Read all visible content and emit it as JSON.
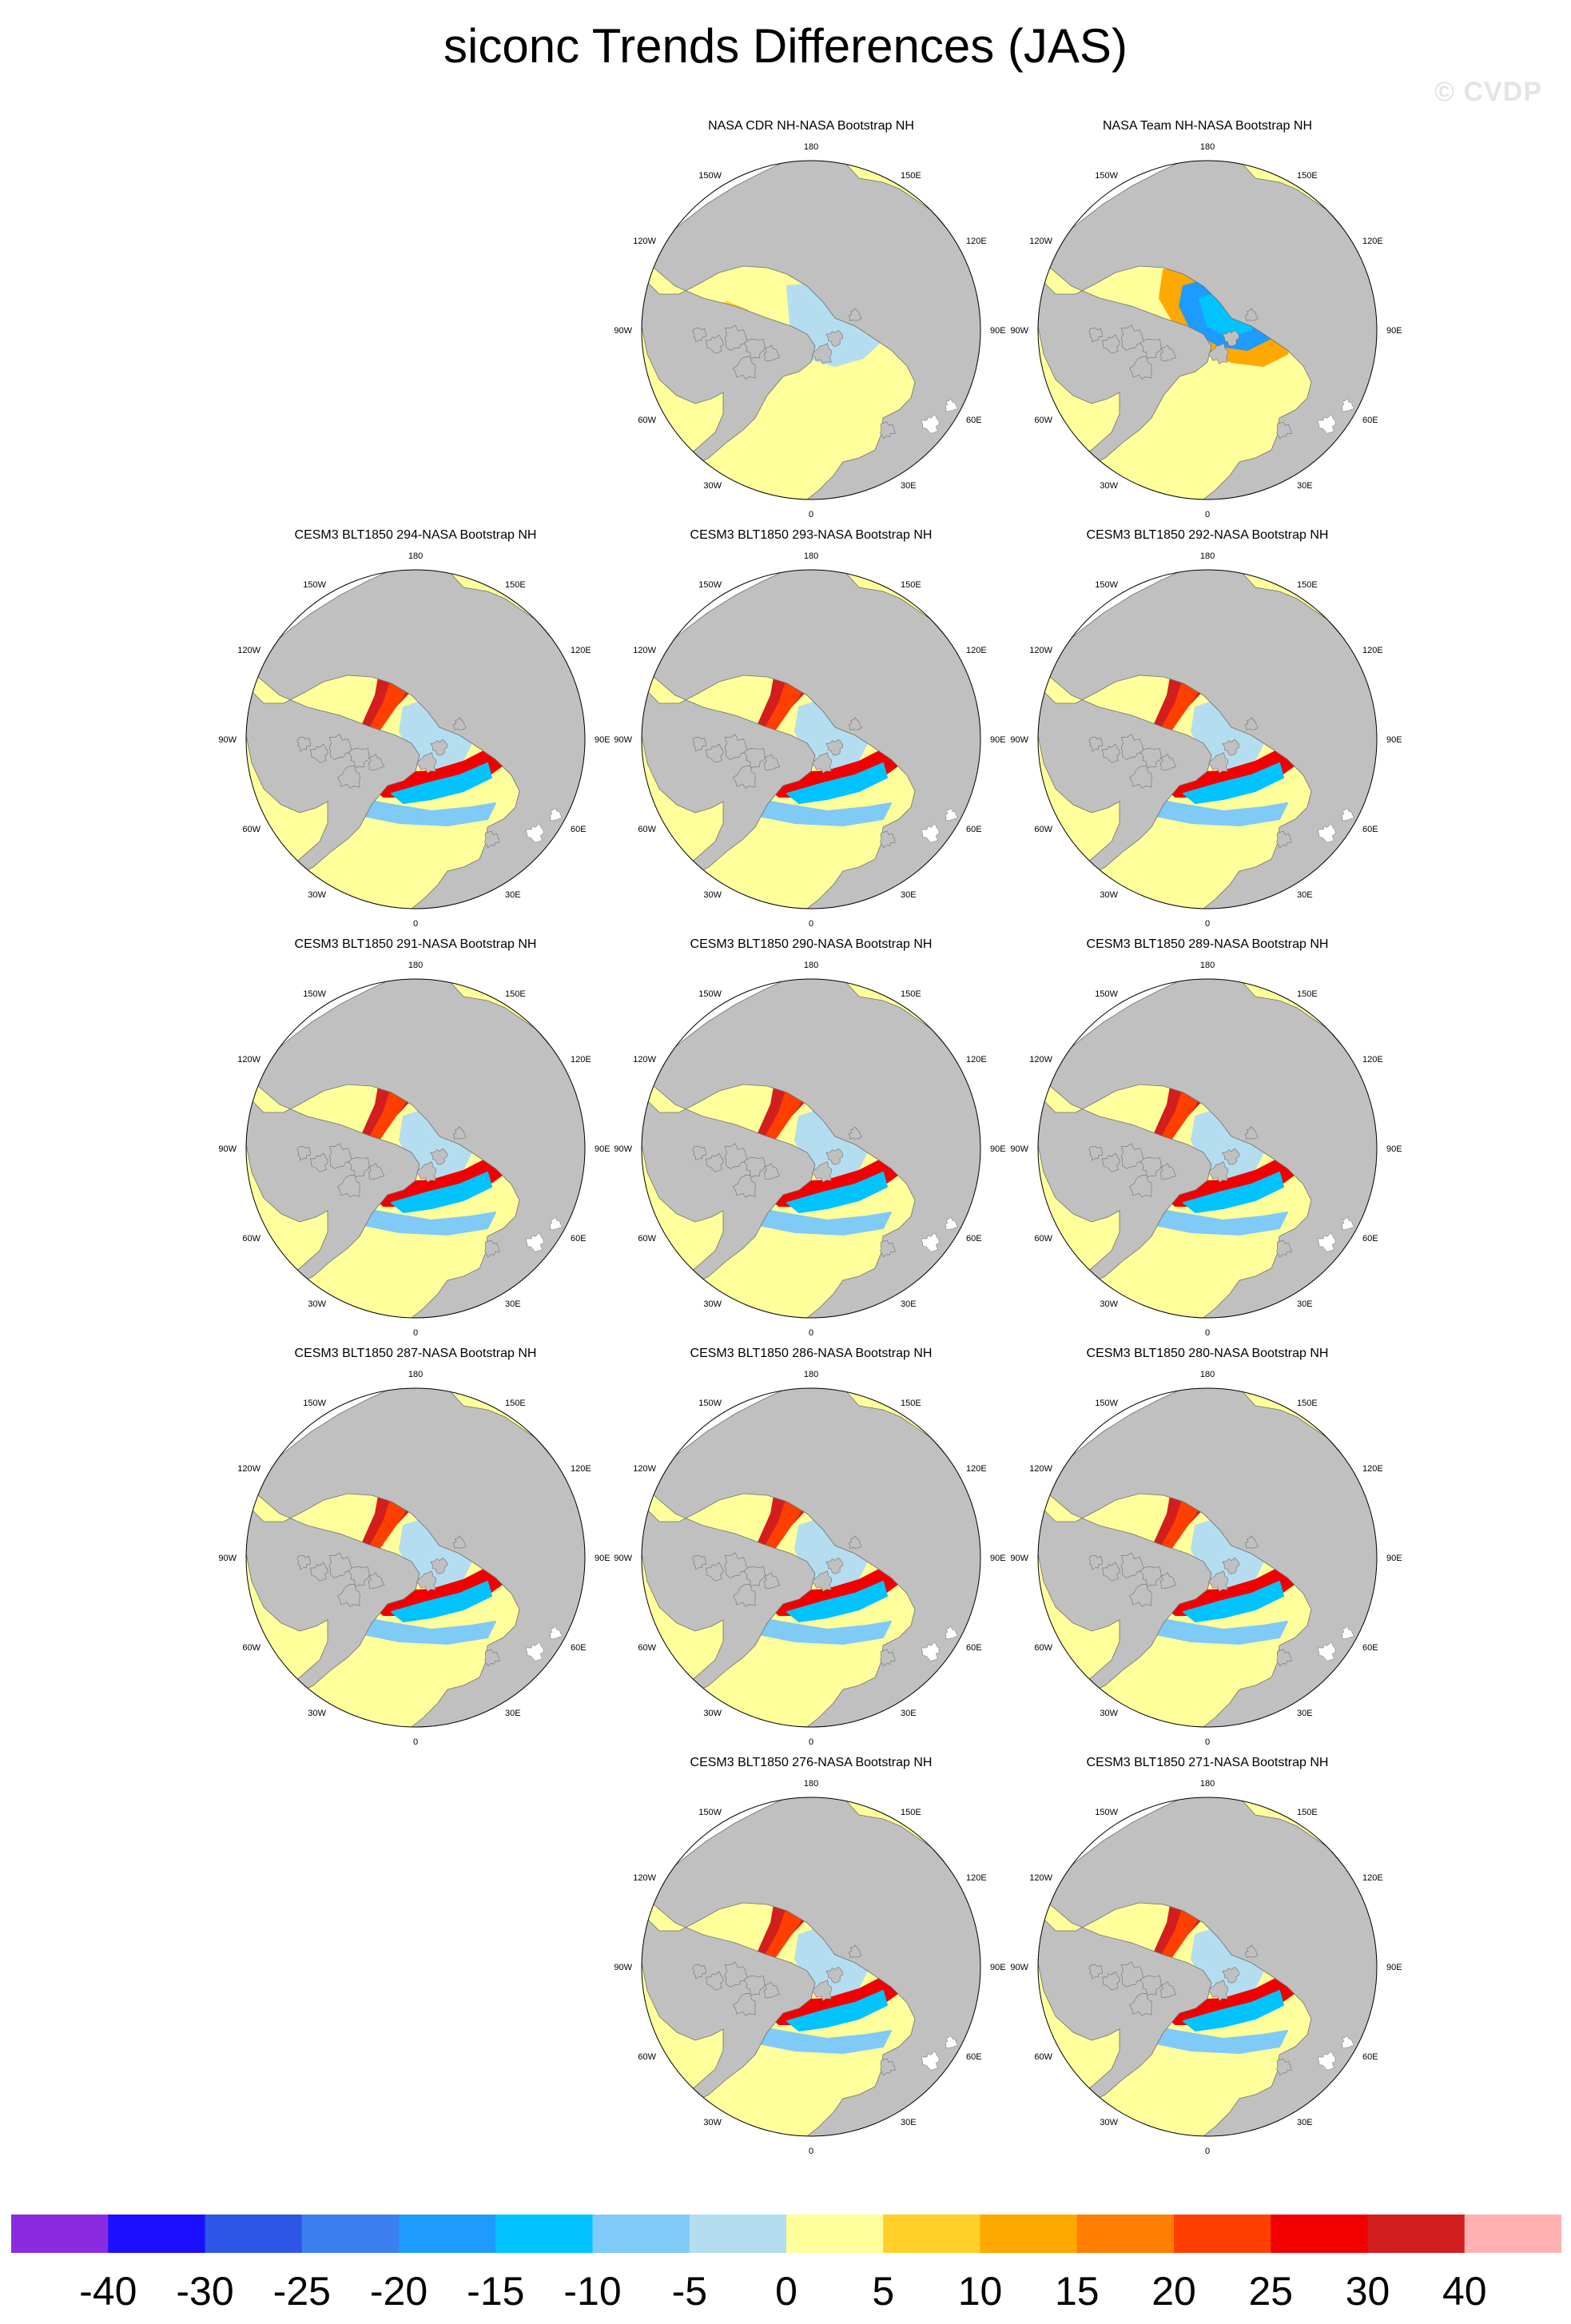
{
  "figure": {
    "title": "siconc Trends Differences (JAS)",
    "watermark": "© CVDP"
  },
  "lon_labels": [
    "180",
    "150E",
    "120E",
    "90E",
    "60E",
    "30E",
    "0",
    "30W",
    "60W",
    "90W",
    "120W",
    "150W"
  ],
  "panels": [
    {
      "row": 0,
      "col": 1,
      "title": "NASA CDR NH-NASA Bootstrap NH",
      "pattern": "cdr"
    },
    {
      "row": 0,
      "col": 2,
      "title": "NASA Team NH-NASA Bootstrap NH",
      "pattern": "team"
    },
    {
      "row": 1,
      "col": 0,
      "title": "CESM3 BLT1850 294-NASA Bootstrap NH",
      "pattern": "model"
    },
    {
      "row": 1,
      "col": 1,
      "title": "CESM3 BLT1850 293-NASA Bootstrap NH",
      "pattern": "model"
    },
    {
      "row": 1,
      "col": 2,
      "title": "CESM3 BLT1850 292-NASA Bootstrap NH",
      "pattern": "model"
    },
    {
      "row": 2,
      "col": 0,
      "title": "CESM3 BLT1850 291-NASA Bootstrap NH",
      "pattern": "model"
    },
    {
      "row": 2,
      "col": 1,
      "title": "CESM3 BLT1850 290-NASA Bootstrap NH",
      "pattern": "model"
    },
    {
      "row": 2,
      "col": 2,
      "title": "CESM3 BLT1850 289-NASA Bootstrap NH",
      "pattern": "model"
    },
    {
      "row": 3,
      "col": 0,
      "title": "CESM3 BLT1850 287-NASA Bootstrap NH",
      "pattern": "model"
    },
    {
      "row": 3,
      "col": 1,
      "title": "CESM3 BLT1850 286-NASA Bootstrap NH",
      "pattern": "model"
    },
    {
      "row": 3,
      "col": 2,
      "title": "CESM3 BLT1850 280-NASA Bootstrap NH",
      "pattern": "model"
    },
    {
      "row": 4,
      "col": 1,
      "title": "CESM3 BLT1850 276-NASA Bootstrap NH",
      "pattern": "model"
    },
    {
      "row": 4,
      "col": 2,
      "title": "CESM3 BLT1850 271-NASA Bootstrap NH",
      "pattern": "model"
    }
  ],
  "colors": {
    "land": "#c0c0c0",
    "ocean_background": "#ffff9b",
    "no_data": "#ffffff"
  },
  "colorbar": {
    "colors": [
      "#8a2be2",
      "#1a10ff",
      "#2d55e6",
      "#3c7ff0",
      "#1e9bff",
      "#00c3ff",
      "#7fcaf7",
      "#b5ddf0",
      "#ffff9b",
      "#ffd02a",
      "#ffa800",
      "#ff7d00",
      "#ff3f00",
      "#f20000",
      "#d21e1e",
      "#ffb1b1"
    ],
    "labels": [
      "-40",
      "-30",
      "-25",
      "-20",
      "-15",
      "-10",
      "-5",
      "0",
      "5",
      "10",
      "15",
      "20",
      "25",
      "30",
      "40"
    ]
  }
}
